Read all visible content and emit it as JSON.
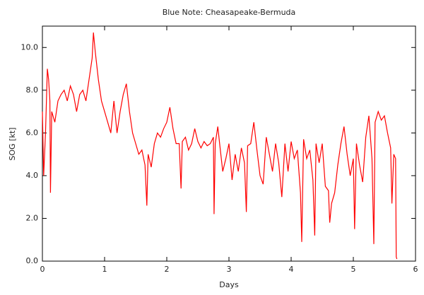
{
  "chart_data": {
    "type": "line",
    "title": "Blue Note: Cheasapeake-Bermuda",
    "x_label": "Days",
    "y_label": "SOG [kt]",
    "x": [
      0,
      0.02,
      0.05,
      0.08,
      0.1,
      0.12,
      0.13,
      0.15,
      0.2,
      0.25,
      0.3,
      0.35,
      0.4,
      0.45,
      0.5,
      0.55,
      0.6,
      0.65,
      0.7,
      0.75,
      0.8,
      0.82,
      0.85,
      0.9,
      0.95,
      1.0,
      1.05,
      1.1,
      1.15,
      1.2,
      1.25,
      1.3,
      1.35,
      1.4,
      1.45,
      1.5,
      1.55,
      1.6,
      1.65,
      1.68,
      1.7,
      1.75,
      1.8,
      1.85,
      1.9,
      1.95,
      2.0,
      2.05,
      2.1,
      2.15,
      2.2,
      2.23,
      2.25,
      2.3,
      2.35,
      2.4,
      2.45,
      2.5,
      2.55,
      2.6,
      2.65,
      2.7,
      2.75,
      2.76,
      2.78,
      2.82,
      2.85,
      2.9,
      2.95,
      3.0,
      3.05,
      3.1,
      3.15,
      3.2,
      3.25,
      3.28,
      3.3,
      3.35,
      3.4,
      3.45,
      3.5,
      3.55,
      3.6,
      3.65,
      3.7,
      3.75,
      3.8,
      3.85,
      3.9,
      3.95,
      4.0,
      4.05,
      4.1,
      4.15,
      4.17,
      4.2,
      4.25,
      4.3,
      4.35,
      4.38,
      4.4,
      4.45,
      4.5,
      4.55,
      4.6,
      4.62,
      4.65,
      4.7,
      4.75,
      4.8,
      4.85,
      4.9,
      4.95,
      5.0,
      5.02,
      5.05,
      5.1,
      5.15,
      5.2,
      5.25,
      5.3,
      5.33,
      5.35,
      5.4,
      5.45,
      5.5,
      5.55,
      5.6,
      5.62,
      5.65,
      5.68,
      5.69,
      5.7
    ],
    "series": [
      {
        "name": "SOG",
        "color": "#ff0000",
        "values": [
          7.0,
          4.0,
          6.0,
          9.0,
          8.5,
          7.5,
          3.2,
          7.0,
          6.5,
          7.5,
          7.8,
          8.0,
          7.5,
          8.2,
          7.8,
          7.0,
          7.8,
          8.0,
          7.5,
          8.5,
          9.5,
          10.7,
          9.8,
          8.5,
          7.5,
          7.0,
          6.5,
          6.0,
          7.5,
          6.0,
          7.0,
          7.8,
          8.3,
          7.0,
          6.0,
          5.5,
          5.0,
          5.2,
          4.5,
          2.6,
          5.0,
          4.4,
          5.5,
          6.0,
          5.8,
          6.2,
          6.5,
          7.2,
          6.2,
          5.5,
          5.5,
          3.4,
          5.6,
          5.8,
          5.2,
          5.5,
          6.2,
          5.6,
          5.3,
          5.6,
          5.4,
          5.5,
          5.8,
          2.2,
          5.5,
          6.3,
          5.5,
          4.2,
          4.8,
          5.5,
          3.8,
          5.0,
          4.2,
          5.3,
          4.6,
          2.3,
          5.4,
          5.5,
          6.5,
          5.2,
          4.0,
          3.6,
          5.8,
          5.0,
          4.2,
          5.5,
          4.6,
          3.0,
          5.5,
          4.2,
          5.6,
          4.8,
          5.2,
          3.2,
          0.9,
          5.7,
          4.8,
          5.2,
          3.8,
          1.2,
          5.5,
          4.6,
          5.5,
          3.5,
          3.3,
          1.8,
          2.7,
          3.2,
          4.5,
          5.5,
          6.3,
          5.0,
          4.0,
          4.8,
          1.5,
          5.5,
          4.5,
          3.7,
          5.8,
          6.8,
          4.8,
          0.8,
          6.5,
          7.0,
          6.6,
          6.8,
          6.0,
          5.3,
          2.7,
          5.0,
          4.8,
          0.2,
          0.1
        ]
      }
    ],
    "xlim": [
      0,
      6
    ],
    "xticks": [
      0,
      1,
      2,
      3,
      4,
      5,
      6
    ],
    "ylim": [
      0,
      11
    ],
    "yticks": [
      {
        "value": 0,
        "label": "0.0"
      },
      {
        "value": 2,
        "label": "2.0"
      },
      {
        "value": 4,
        "label": "4.0"
      },
      {
        "value": 6,
        "label": "6.0"
      },
      {
        "value": 8,
        "label": "8.0"
      },
      {
        "value": 10,
        "label": "10.0"
      }
    ]
  }
}
